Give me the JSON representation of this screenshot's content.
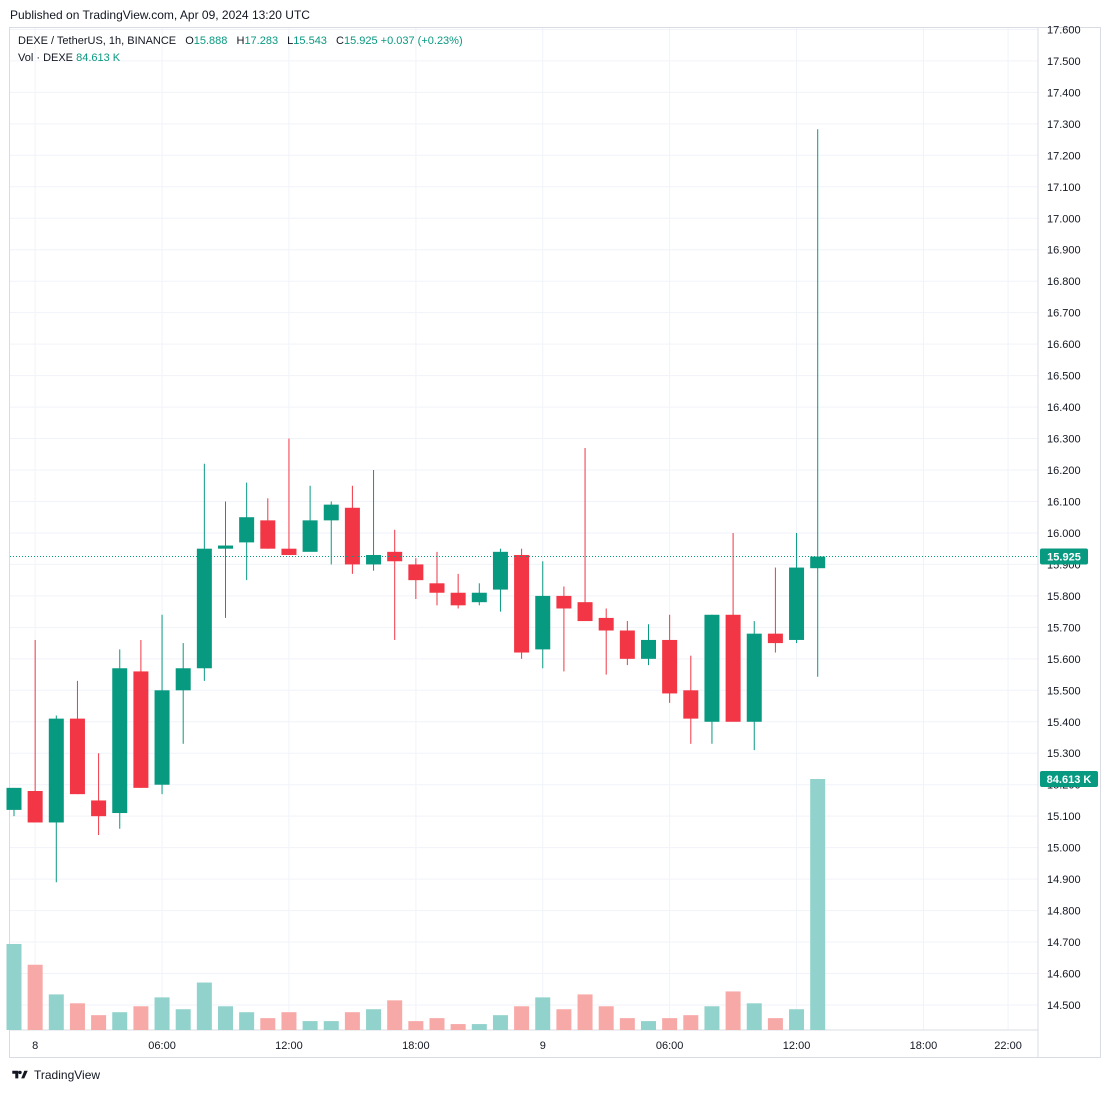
{
  "header": {
    "published": "Published on TradingView.com, Apr 09, 2024 13:20 UTC"
  },
  "legend": {
    "symbol": "DEXE / TetherUS, 1h, BINANCE",
    "o_label": "O",
    "o_value": "15.888",
    "h_label": "H",
    "h_value": "17.283",
    "l_label": "L",
    "l_value": "15.543",
    "c_label": "C",
    "c_value": "15.925",
    "change": "+0.037 (+0.23%)",
    "vol_label": "Vol · DEXE",
    "vol_value": "84.613 K"
  },
  "footer": {
    "brand": "TradingView",
    "logo_icon": "tradingview-logo-icon"
  },
  "colors": {
    "up": "#089981",
    "down": "#f23645",
    "up_vol": "#92d2cc",
    "down_vol": "#f7a9a7",
    "grid": "#f0f3fa",
    "axis_text": "#131722"
  },
  "chart_data": {
    "type": "candlestick",
    "symbol": "DEXE / TetherUS",
    "interval": "1h",
    "exchange": "BINANCE",
    "ylim": [
      14.43,
      17.6
    ],
    "y_ticks": [
      "14.500",
      "14.600",
      "14.700",
      "14.800",
      "14.900",
      "15.000",
      "15.100",
      "15.200",
      "15.300",
      "15.400",
      "15.500",
      "15.600",
      "15.700",
      "15.800",
      "15.900",
      "16.000",
      "16.100",
      "16.200",
      "16.300",
      "16.400",
      "16.500",
      "16.600",
      "16.700",
      "16.800",
      "16.900",
      "17.000",
      "17.100",
      "17.200",
      "17.300",
      "17.400",
      "17.500",
      "17.600"
    ],
    "x_ticks": [
      {
        "label": "8",
        "index": 1
      },
      {
        "label": "06:00",
        "index": 7
      },
      {
        "label": "12:00",
        "index": 13
      },
      {
        "label": "18:00",
        "index": 19
      },
      {
        "label": "9",
        "index": 25
      },
      {
        "label": "06:00",
        "index": 31
      },
      {
        "label": "12:00",
        "index": 37
      },
      {
        "label": "18:00",
        "index": 43
      },
      {
        "label": "22:00",
        "index": 47
      }
    ],
    "last_price_label": "15.925",
    "last_price": 15.925,
    "volume_label": "84.613 K",
    "candles": [
      {
        "o": 15.12,
        "h": 15.19,
        "l": 15.1,
        "c": 15.19,
        "v": 29
      },
      {
        "o": 15.18,
        "h": 15.66,
        "l": 15.09,
        "c": 15.08,
        "v": 22
      },
      {
        "o": 15.08,
        "h": 15.42,
        "l": 14.89,
        "c": 15.41,
        "v": 12
      },
      {
        "o": 15.41,
        "h": 15.53,
        "l": 15.17,
        "c": 15.17,
        "v": 9
      },
      {
        "o": 15.15,
        "h": 15.3,
        "l": 15.04,
        "c": 15.1,
        "v": 5
      },
      {
        "o": 15.11,
        "h": 15.63,
        "l": 15.06,
        "c": 15.57,
        "v": 6
      },
      {
        "o": 15.56,
        "h": 15.66,
        "l": 15.19,
        "c": 15.19,
        "v": 8
      },
      {
        "o": 15.2,
        "h": 15.74,
        "l": 15.17,
        "c": 15.5,
        "v": 11
      },
      {
        "o": 15.5,
        "h": 15.65,
        "l": 15.33,
        "c": 15.57,
        "v": 7
      },
      {
        "o": 15.57,
        "h": 16.22,
        "l": 15.53,
        "c": 15.95,
        "v": 16
      },
      {
        "o": 15.95,
        "h": 16.1,
        "l": 15.73,
        "c": 15.96,
        "v": 8
      },
      {
        "o": 15.97,
        "h": 16.16,
        "l": 15.85,
        "c": 16.05,
        "v": 6
      },
      {
        "o": 16.04,
        "h": 16.11,
        "l": 15.95,
        "c": 15.95,
        "v": 4
      },
      {
        "o": 15.95,
        "h": 16.3,
        "l": 15.93,
        "c": 15.93,
        "v": 6
      },
      {
        "o": 15.94,
        "h": 16.15,
        "l": 15.95,
        "c": 16.04,
        "v": 3
      },
      {
        "o": 16.04,
        "h": 16.1,
        "l": 15.9,
        "c": 16.09,
        "v": 3
      },
      {
        "o": 16.08,
        "h": 16.15,
        "l": 15.87,
        "c": 15.9,
        "v": 6
      },
      {
        "o": 15.9,
        "h": 16.2,
        "l": 15.88,
        "c": 15.93,
        "v": 7
      },
      {
        "o": 15.94,
        "h": 16.01,
        "l": 15.66,
        "c": 15.91,
        "v": 10
      },
      {
        "o": 15.9,
        "h": 15.92,
        "l": 15.79,
        "c": 15.85,
        "v": 3
      },
      {
        "o": 15.84,
        "h": 15.94,
        "l": 15.77,
        "c": 15.81,
        "v": 4
      },
      {
        "o": 15.81,
        "h": 15.87,
        "l": 15.76,
        "c": 15.77,
        "v": 2
      },
      {
        "o": 15.78,
        "h": 15.84,
        "l": 15.77,
        "c": 15.81,
        "v": 2
      },
      {
        "o": 15.82,
        "h": 15.95,
        "l": 15.75,
        "c": 15.94,
        "v": 5
      },
      {
        "o": 15.93,
        "h": 15.95,
        "l": 15.6,
        "c": 15.62,
        "v": 8
      },
      {
        "o": 15.63,
        "h": 15.91,
        "l": 15.57,
        "c": 15.8,
        "v": 11
      },
      {
        "o": 15.8,
        "h": 15.83,
        "l": 15.56,
        "c": 15.76,
        "v": 7
      },
      {
        "o": 15.78,
        "h": 16.27,
        "l": 15.74,
        "c": 15.72,
        "v": 12
      },
      {
        "o": 15.73,
        "h": 15.76,
        "l": 15.55,
        "c": 15.69,
        "v": 8
      },
      {
        "o": 15.69,
        "h": 15.72,
        "l": 15.58,
        "c": 15.6,
        "v": 4
      },
      {
        "o": 15.6,
        "h": 15.71,
        "l": 15.58,
        "c": 15.66,
        "v": 3
      },
      {
        "o": 15.66,
        "h": 15.74,
        "l": 15.46,
        "c": 15.49,
        "v": 4
      },
      {
        "o": 15.5,
        "h": 15.61,
        "l": 15.33,
        "c": 15.41,
        "v": 5
      },
      {
        "o": 15.4,
        "h": 15.74,
        "l": 15.33,
        "c": 15.74,
        "v": 8
      },
      {
        "o": 15.74,
        "h": 16.0,
        "l": 15.41,
        "c": 15.4,
        "v": 13
      },
      {
        "o": 15.4,
        "h": 15.72,
        "l": 15.31,
        "c": 15.68,
        "v": 9
      },
      {
        "o": 15.68,
        "h": 15.89,
        "l": 15.62,
        "c": 15.65,
        "v": 4
      },
      {
        "o": 15.66,
        "h": 16.0,
        "l": 15.65,
        "c": 15.89,
        "v": 7
      },
      {
        "o": 15.888,
        "h": 17.283,
        "l": 15.543,
        "c": 15.925,
        "v": 84.613
      }
    ]
  }
}
